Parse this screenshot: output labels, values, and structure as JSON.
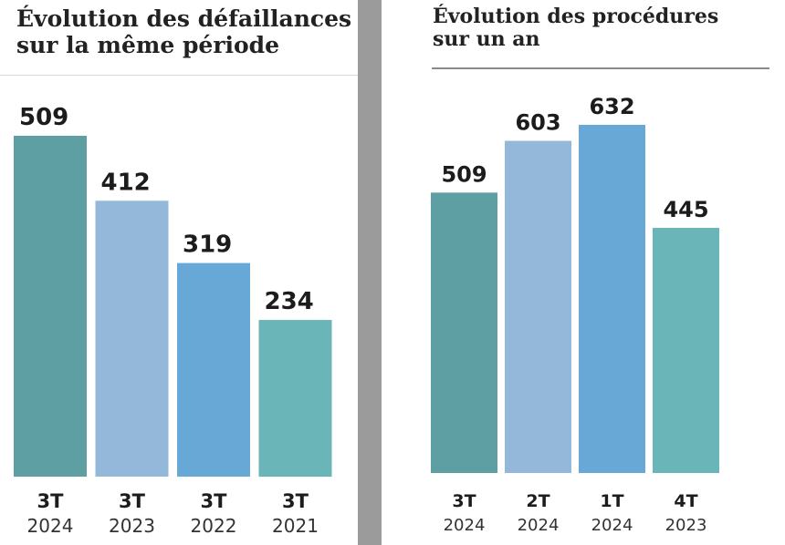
{
  "chart_data": [
    {
      "type": "bar",
      "title": "Évolution des défaillances sur la même période",
      "title_lines": [
        "Évolution des défaillances",
        "sur la même période"
      ],
      "categories": [
        {
          "line1": "3T",
          "line2": "2024"
        },
        {
          "line1": "3T",
          "line2": "2023"
        },
        {
          "line1": "3T",
          "line2": "2022"
        },
        {
          "line1": "3T",
          "line2": "2021"
        }
      ],
      "values": [
        509,
        412,
        319,
        234
      ],
      "colors": [
        "#5e9fa3",
        "#93b8d9",
        "#67a8d6",
        "#6ab5b8"
      ]
    },
    {
      "type": "bar",
      "title": "Évolution des procédures sur un an",
      "title_lines": [
        "Évolution des procédures",
        "sur un an"
      ],
      "categories": [
        {
          "line1": "3T",
          "line2": "2024"
        },
        {
          "line1": "2T",
          "line2": "2024"
        },
        {
          "line1": "1T",
          "line2": "2024"
        },
        {
          "line1": "4T",
          "line2": "2023"
        }
      ],
      "values": [
        509,
        603,
        632,
        445
      ],
      "colors": [
        "#5e9fa3",
        "#93b8d9",
        "#67a8d6",
        "#6ab5b8"
      ]
    }
  ]
}
